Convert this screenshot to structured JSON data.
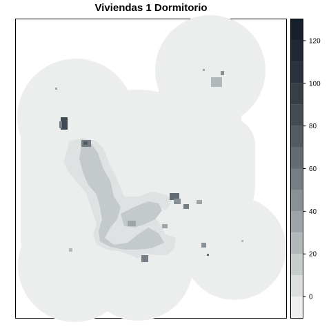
{
  "title": "Viviendas 1 Dormitorio",
  "legend": {
    "ticks": [
      "0",
      "20",
      "40",
      "60",
      "80",
      "100",
      "120"
    ],
    "tick_values": [
      0,
      20,
      40,
      60,
      80,
      100,
      120
    ],
    "range": [
      -10,
      130
    ],
    "bin_step": 10,
    "colors": [
      "#eef0f0",
      "#dcdfe0",
      "#c7cccd",
      "#b2b9bb",
      "#9da5a8",
      "#889196",
      "#747e84",
      "#616c73",
      "#505b62",
      "#414c54",
      "#343f48",
      "#28333d",
      "#1e2933",
      "#16202a"
    ]
  },
  "colors": {
    "background_hex": "#eceeed",
    "low_hex": "#dfe2e2",
    "mid_hex": "#c4c9cb",
    "high_hex": "#8c959a",
    "dark_hex": "#3f4a54"
  }
}
